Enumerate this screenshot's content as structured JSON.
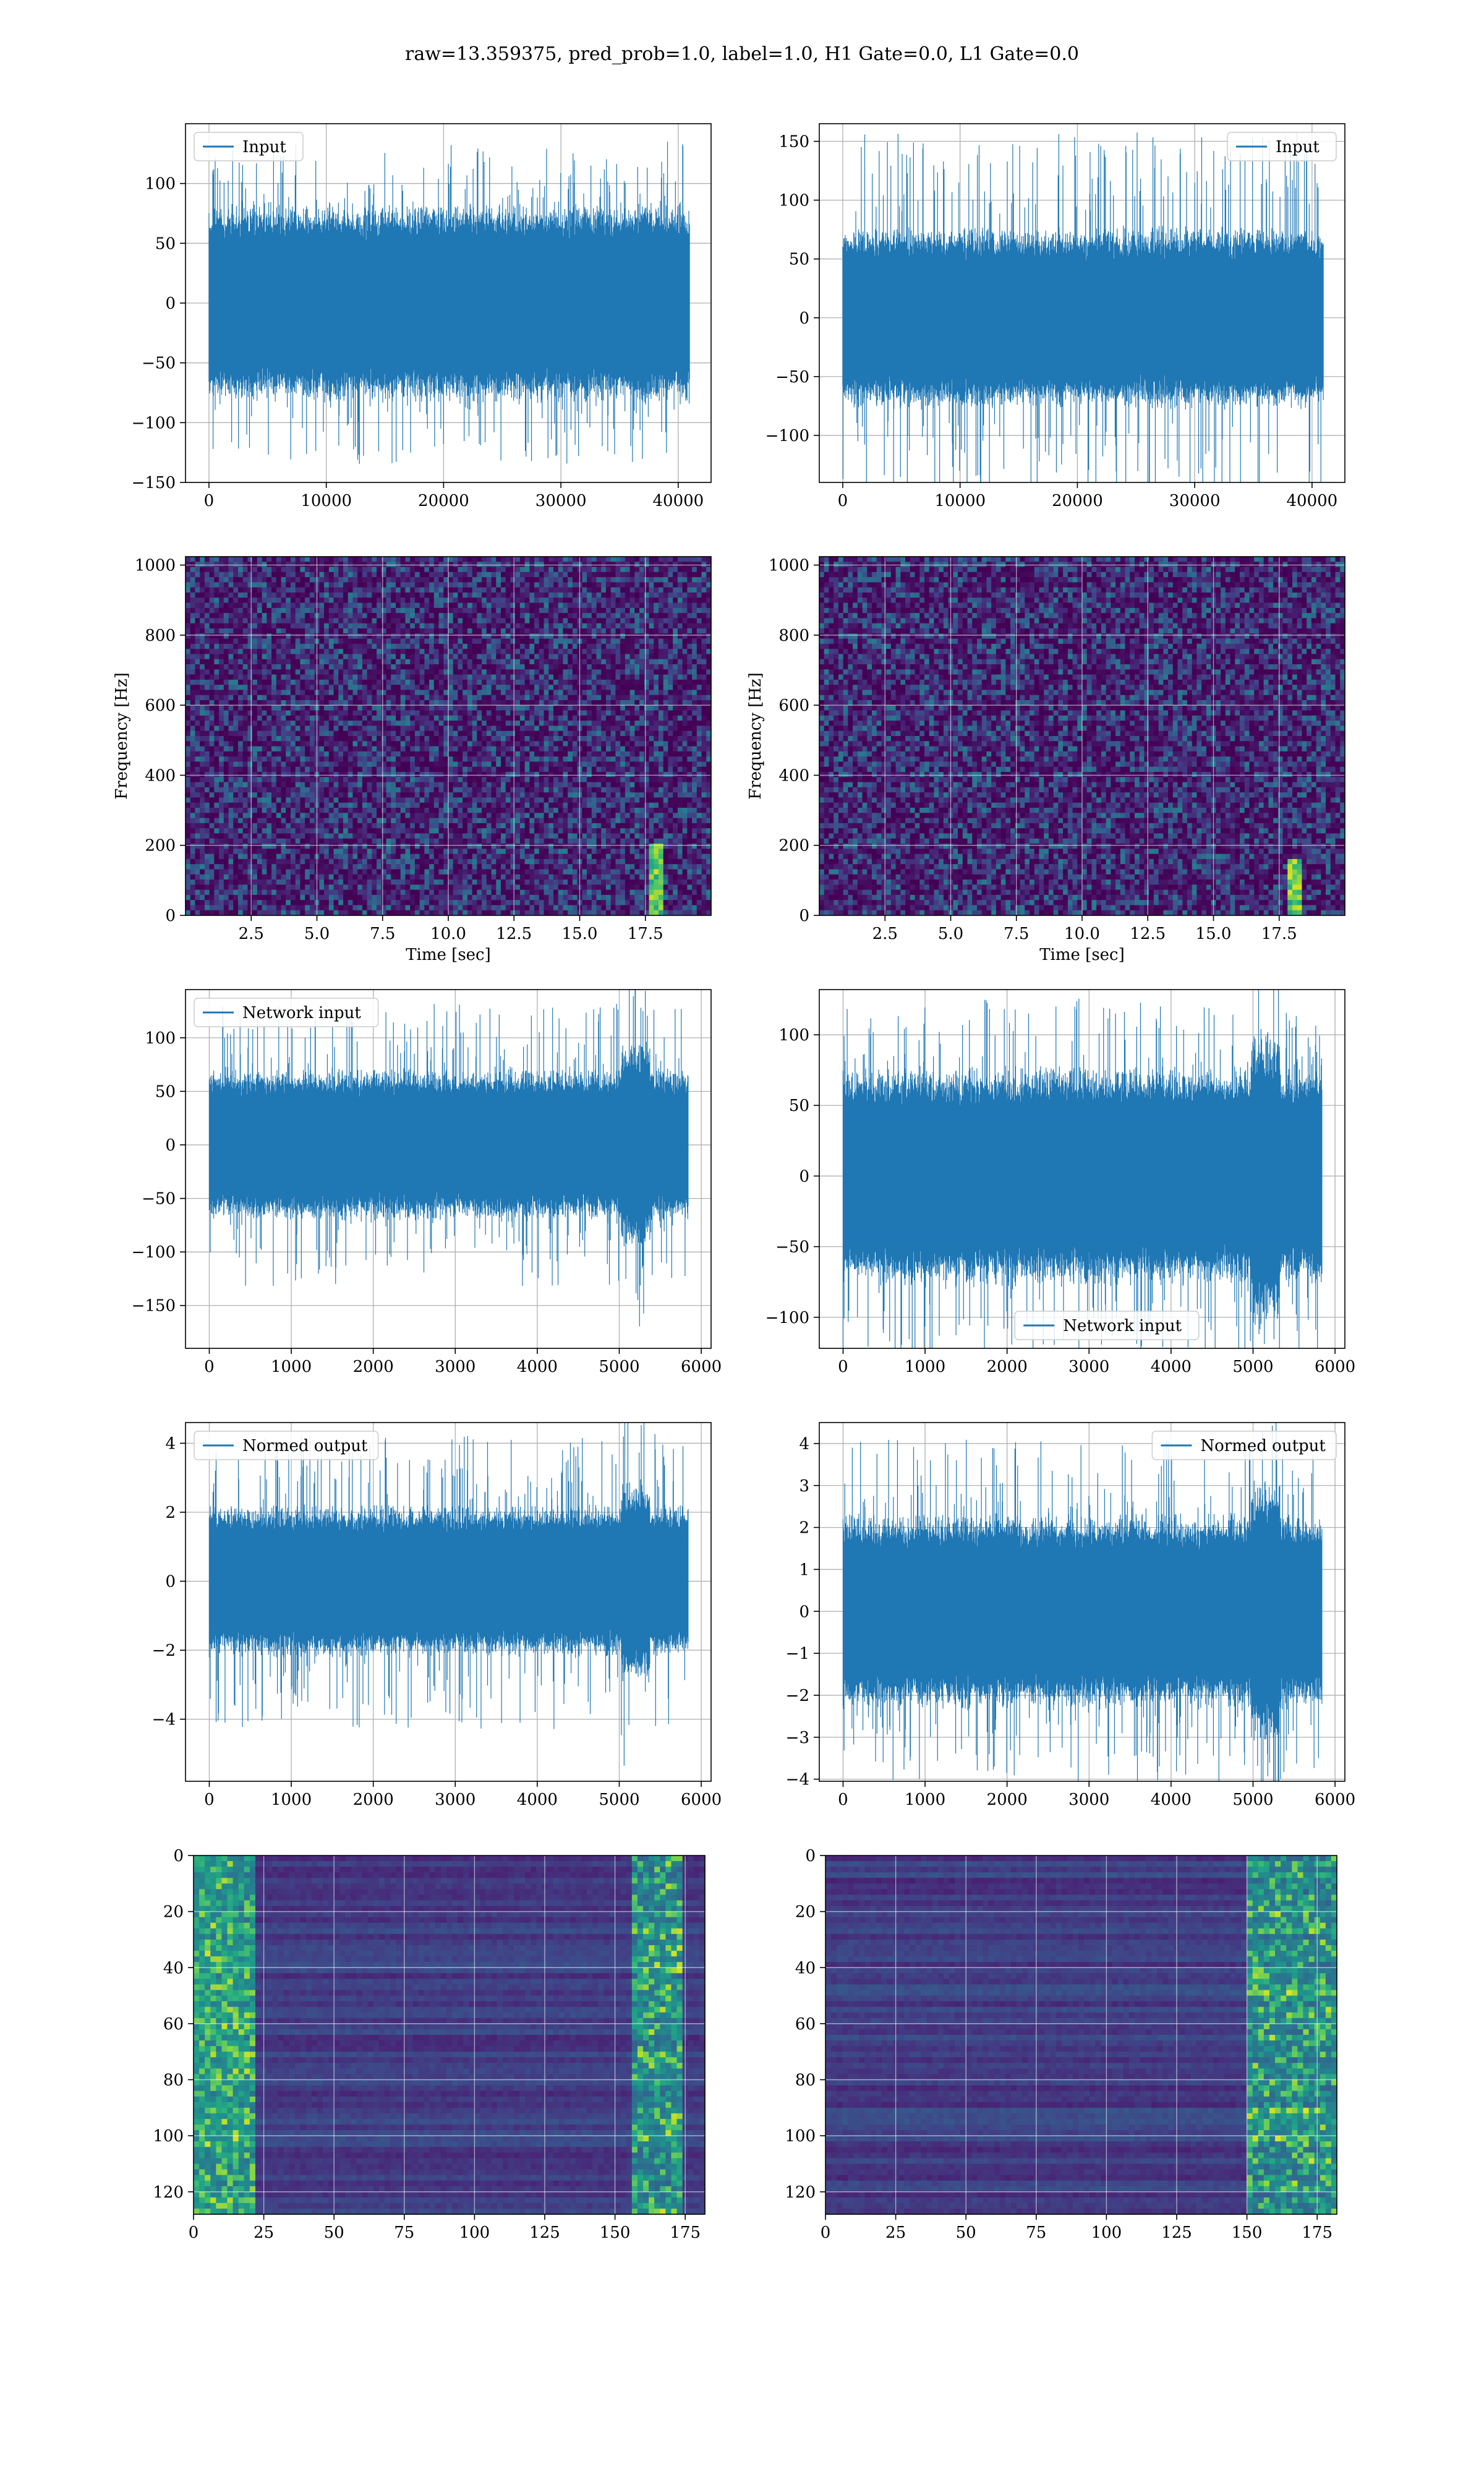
{
  "title": "raw=13.359375, pred_prob=1.0, label=1.0, H1 Gate=0.0, L1 Gate=0.0",
  "chart_data": [
    {
      "id": "p1",
      "type": "line",
      "series_name": "Input",
      "legend_loc": "upper-left",
      "xlim": [
        -2000,
        42800
      ],
      "ylim": [
        -150,
        150
      ],
      "xticks": [
        0,
        10000,
        20000,
        30000,
        40000
      ],
      "yticks": [
        -150,
        -100,
        -50,
        0,
        50,
        100
      ],
      "xlabel": "",
      "ylabel": "",
      "grid": true,
      "signal": {
        "n": 40960,
        "sigma": 27,
        "band": 65,
        "spike_max": 135
      }
    },
    {
      "id": "p2",
      "type": "line",
      "series_name": "Input",
      "legend_loc": "upper-right",
      "xlim": [
        -2000,
        42800
      ],
      "ylim": [
        -140,
        165
      ],
      "xticks": [
        0,
        10000,
        20000,
        30000,
        40000
      ],
      "yticks": [
        -100,
        -50,
        0,
        50,
        100,
        150
      ],
      "xlabel": "",
      "ylabel": "",
      "grid": true,
      "signal": {
        "n": 40960,
        "sigma": 25,
        "band": 60,
        "spike_max": 158
      }
    },
    {
      "id": "p3",
      "type": "heatmap",
      "xlim": [
        0,
        20
      ],
      "ylim": [
        0,
        1024
      ],
      "xticks": [
        2.5,
        5.0,
        7.5,
        10.0,
        12.5,
        15.0,
        17.5
      ],
      "yticks": [
        0,
        200,
        400,
        600,
        800,
        1000
      ],
      "xlabel": "Time [sec]",
      "ylabel": "Frequency [Hz]",
      "grid": true,
      "chirp": {
        "t": 17.9,
        "f_max": 200
      }
    },
    {
      "id": "p4",
      "type": "heatmap",
      "xlim": [
        0,
        20
      ],
      "ylim": [
        0,
        1024
      ],
      "xticks": [
        2.5,
        5.0,
        7.5,
        10.0,
        12.5,
        15.0,
        17.5
      ],
      "yticks": [
        0,
        200,
        400,
        600,
        800,
        1000
      ],
      "xlabel": "Time [sec]",
      "ylabel": "Frequency [Hz]",
      "grid": true,
      "chirp": {
        "t": 18.1,
        "f_max": 160
      }
    },
    {
      "id": "p5",
      "type": "line",
      "series_name": "Network input",
      "legend_loc": "upper-left",
      "xlim": [
        -290,
        6120
      ],
      "ylim": [
        -190,
        145
      ],
      "xticks": [
        0,
        1000,
        2000,
        3000,
        4000,
        5000,
        6000
      ],
      "yticks": [
        -150,
        -100,
        -50,
        0,
        50,
        100
      ],
      "xlabel": "",
      "ylabel": "",
      "grid": true,
      "signal": {
        "n": 5840,
        "sigma": 24,
        "band": 55,
        "spike_max": 132,
        "burst_at": 5200
      }
    },
    {
      "id": "p6",
      "type": "line",
      "series_name": "Network input",
      "legend_loc": "lower-center",
      "xlim": [
        -290,
        6120
      ],
      "ylim": [
        -122,
        132
      ],
      "xticks": [
        0,
        1000,
        2000,
        3000,
        4000,
        5000,
        6000
      ],
      "yticks": [
        -100,
        -50,
        0,
        50,
        100
      ],
      "xlabel": "",
      "ylabel": "",
      "grid": true,
      "signal": {
        "n": 5840,
        "sigma": 26,
        "band": 60,
        "spike_max": 128,
        "burst_at": 5150
      }
    },
    {
      "id": "p7",
      "type": "line",
      "series_name": "Normed output",
      "legend_loc": "upper-left",
      "xlim": [
        -290,
        6120
      ],
      "ylim": [
        -5.8,
        4.6
      ],
      "xticks": [
        0,
        1000,
        2000,
        3000,
        4000,
        5000,
        6000
      ],
      "yticks": [
        -4,
        -2,
        0,
        2,
        4
      ],
      "xlabel": "",
      "ylabel": "",
      "grid": true,
      "signal": {
        "n": 5840,
        "sigma": 0.8,
        "band": 1.7,
        "spike_max": 4.3,
        "burst_at": 5200
      }
    },
    {
      "id": "p8",
      "type": "line",
      "series_name": "Normed output",
      "legend_loc": "upper-right",
      "xlim": [
        -290,
        6120
      ],
      "ylim": [
        -4.05,
        4.5
      ],
      "xticks": [
        0,
        1000,
        2000,
        3000,
        4000,
        5000,
        6000
      ],
      "yticks": [
        -4,
        -3,
        -2,
        -1,
        0,
        1,
        2,
        3,
        4
      ],
      "xlabel": "",
      "ylabel": "",
      "grid": true,
      "signal": {
        "n": 5840,
        "sigma": 0.8,
        "band": 1.8,
        "spike_max": 4.1,
        "burst_at": 5150
      }
    },
    {
      "id": "p9",
      "type": "heatmap",
      "xlim": [
        0,
        182
      ],
      "ylim": [
        128,
        0
      ],
      "xticks": [
        0,
        25,
        50,
        75,
        100,
        125,
        150,
        175
      ],
      "yticks": [
        0,
        20,
        40,
        60,
        80,
        100,
        120
      ],
      "xlabel": "",
      "ylabel": "",
      "grid": true,
      "features": {
        "left_band": [
          0,
          22
        ],
        "right_band": [
          155,
          175
        ]
      }
    },
    {
      "id": "p10",
      "type": "heatmap",
      "xlim": [
        0,
        182
      ],
      "ylim": [
        128,
        0
      ],
      "xticks": [
        0,
        25,
        50,
        75,
        100,
        125,
        150,
        175
      ],
      "yticks": [
        0,
        20,
        40,
        60,
        80,
        100,
        120
      ],
      "xlabel": "",
      "ylabel": "",
      "grid": true,
      "features": {
        "left_band": null,
        "right_band": [
          150,
          182
        ]
      }
    }
  ]
}
